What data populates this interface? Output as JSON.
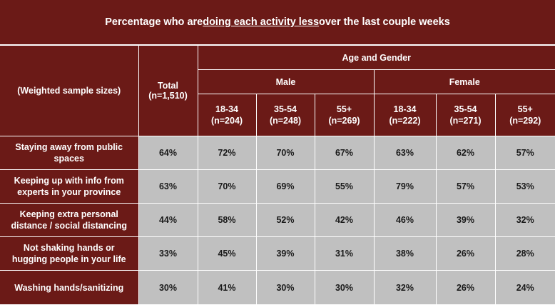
{
  "title": {
    "prefix": "Percentage who are ",
    "underlined": "doing each activity less",
    "suffix": " over the last couple weeks"
  },
  "header": {
    "sample_label": "(Weighted sample sizes)",
    "total_label": "Total",
    "total_n": "(n=1,510)",
    "group_label": "Age and Gender",
    "male_label": "Male",
    "female_label": "Female",
    "columns": [
      {
        "age": "18-34",
        "n": "(n=204)"
      },
      {
        "age": "35-54",
        "n": "(n=248)"
      },
      {
        "age": "55+",
        "n": "(n=269)"
      },
      {
        "age": "18-34",
        "n": "(n=222)"
      },
      {
        "age": "35-54",
        "n": "(n=271)"
      },
      {
        "age": "55+",
        "n": "(n=292)"
      }
    ]
  },
  "rows": [
    {
      "label_l1": "Staying away from public",
      "label_l2": "spaces",
      "total": "64%",
      "values": [
        "72%",
        "70%",
        "67%",
        "63%",
        "62%",
        "57%"
      ]
    },
    {
      "label_l1": "Keeping up with info from",
      "label_l2": "experts in your province",
      "total": "63%",
      "values": [
        "70%",
        "69%",
        "55%",
        "79%",
        "57%",
        "53%"
      ]
    },
    {
      "label_l1": "Keeping extra personal",
      "label_l2": "distance / social distancing",
      "total": "44%",
      "values": [
        "58%",
        "52%",
        "42%",
        "46%",
        "39%",
        "32%"
      ]
    },
    {
      "label_l1": "Not shaking hands or",
      "label_l2": "hugging people in your life",
      "total": "33%",
      "values": [
        "45%",
        "39%",
        "31%",
        "38%",
        "26%",
        "28%"
      ]
    },
    {
      "label_l1": "Washing hands/sanitizing",
      "label_l2": "",
      "total": "30%",
      "values": [
        "41%",
        "30%",
        "30%",
        "32%",
        "26%",
        "24%"
      ]
    }
  ],
  "colors": {
    "background": "#6b1a17",
    "cell": "#c0c0c0",
    "border": "#ffffff"
  }
}
